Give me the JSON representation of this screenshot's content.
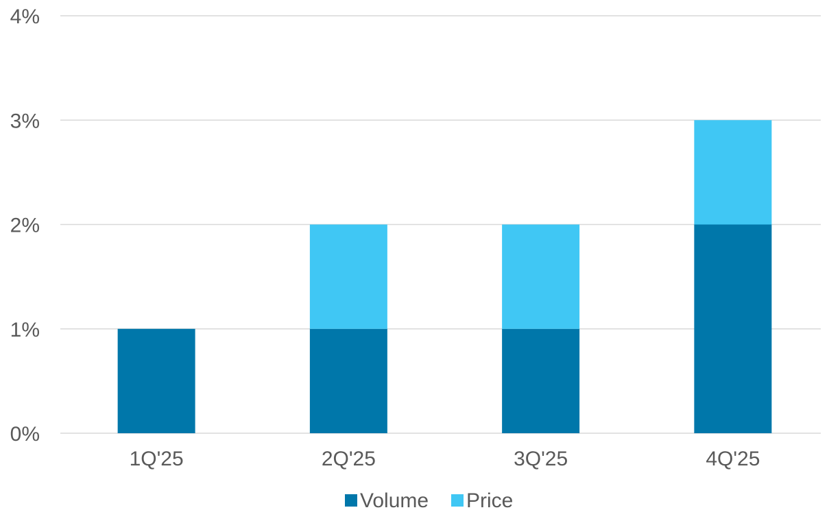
{
  "chart_data": {
    "type": "bar",
    "stacked": true,
    "categories": [
      "1Q'25",
      "2Q'25",
      "3Q'25",
      "4Q'25"
    ],
    "series": [
      {
        "name": "Volume",
        "values": [
          1,
          1,
          1,
          2
        ],
        "color": "#0077aa"
      },
      {
        "name": "Price",
        "values": [
          0,
          1,
          1,
          1
        ],
        "color": "#40c7f4"
      }
    ],
    "title": "",
    "xlabel": "",
    "ylabel": "",
    "ylim": [
      0,
      4
    ],
    "yticks": [
      0,
      1,
      2,
      3,
      4
    ],
    "ytick_labels": [
      "0%",
      "1%",
      "2%",
      "3%",
      "4%"
    ],
    "grid": true,
    "legend_position": "bottom"
  }
}
